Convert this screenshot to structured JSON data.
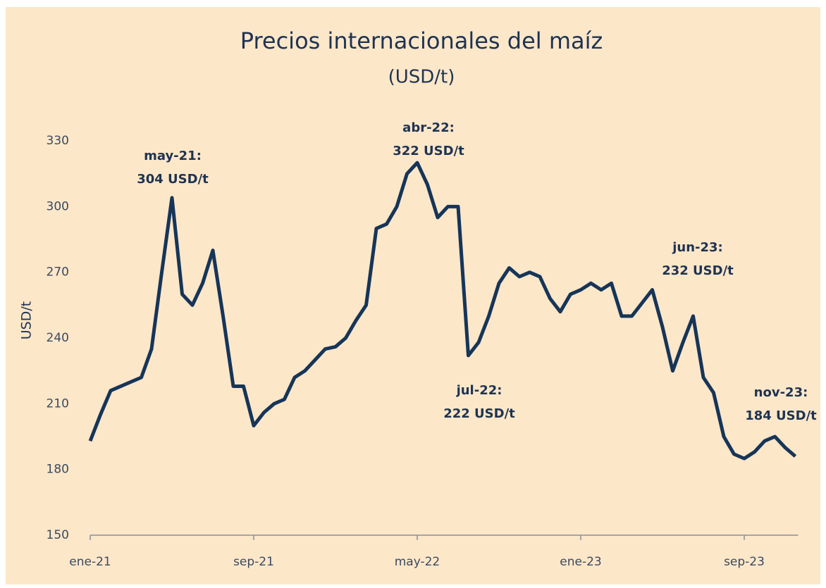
{
  "chart_data": {
    "type": "line",
    "title": "Precios internacionales del maíz",
    "subtitle": "(USD/t)",
    "y_label": "USD/t",
    "categories": [
      "ene-21",
      null,
      null,
      null,
      null,
      null,
      null,
      null,
      null,
      null,
      null,
      null,
      null,
      null,
      null,
      null,
      "sep-21",
      null,
      null,
      null,
      null,
      null,
      null,
      null,
      null,
      null,
      null,
      null,
      null,
      null,
      null,
      null,
      "may-22",
      null,
      null,
      null,
      null,
      null,
      null,
      null,
      null,
      null,
      null,
      null,
      null,
      null,
      null,
      null,
      "ene-23",
      null,
      null,
      null,
      null,
      null,
      null,
      null,
      null,
      null,
      null,
      null,
      null,
      null,
      null,
      null,
      "sep-23",
      null,
      null,
      null,
      null,
      null
    ],
    "series": [
      {
        "name": "Maíz",
        "color": "#163558",
        "values": [
          193,
          205,
          216,
          218,
          220,
          222,
          235,
          270,
          304,
          260,
          255,
          265,
          280,
          250,
          218,
          218,
          200,
          206,
          210,
          212,
          222,
          225,
          230,
          235,
          236,
          240,
          248,
          255,
          290,
          292,
          300,
          315,
          320,
          310,
          295,
          300,
          300,
          232,
          238,
          250,
          265,
          272,
          268,
          270,
          268,
          258,
          252,
          260,
          262,
          265,
          262,
          265,
          250,
          250,
          256,
          262,
          245,
          225,
          238,
          250,
          222,
          215,
          195,
          187,
          185,
          188,
          193,
          195,
          190,
          186
        ]
      }
    ],
    "annotations": [
      {
        "date": "may-21:",
        "text": "304 USD/t"
      },
      {
        "date": "abr-22:",
        "text": "322 USD/t"
      },
      {
        "date": "jul-22:",
        "text": "222 USD/t"
      },
      {
        "date": "jun-23:",
        "text": "232 USD/t"
      },
      {
        "date": "nov-23:",
        "text": "184 USD/t"
      }
    ],
    "ylim": [
      150,
      330
    ],
    "yticks": [
      150,
      180,
      210,
      240,
      270,
      300,
      330
    ]
  }
}
